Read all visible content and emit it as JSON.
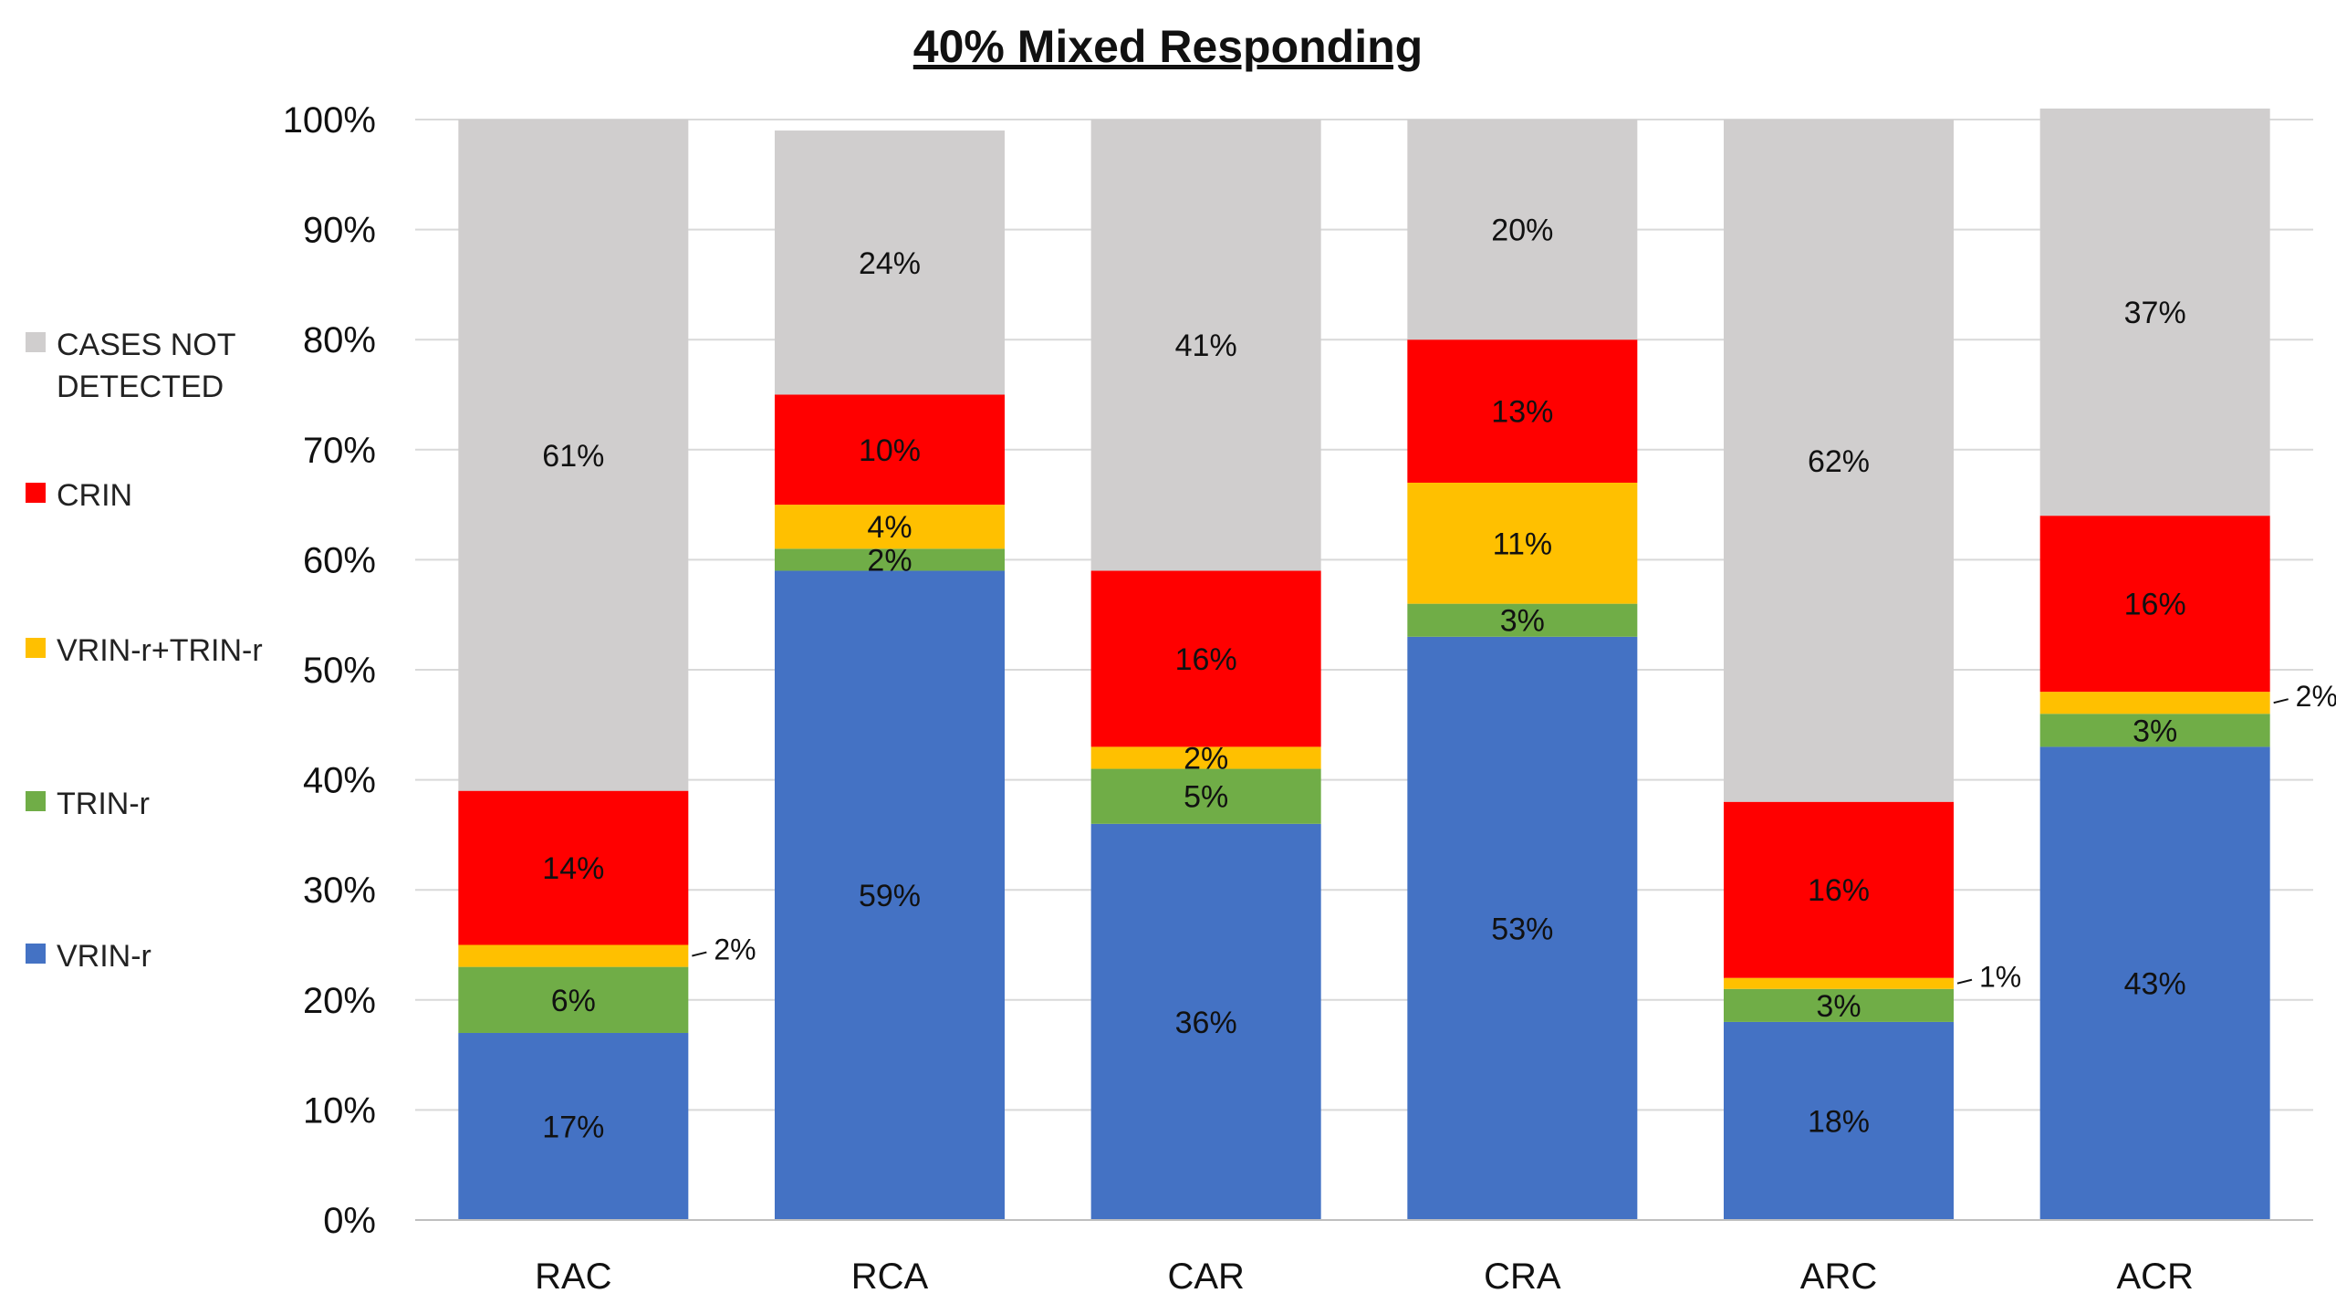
{
  "chart_data": {
    "type": "bar",
    "stacked": true,
    "title": "40% Mixed Responding",
    "xlabel": "",
    "ylabel": "",
    "ylim": [
      0,
      100
    ],
    "y_ticks": [
      "0%",
      "10%",
      "20%",
      "30%",
      "40%",
      "50%",
      "60%",
      "70%",
      "80%",
      "90%",
      "100%"
    ],
    "grid": true,
    "legend_position": "left",
    "categories": [
      "RAC",
      "RCA",
      "CAR",
      "CRA",
      "ARC",
      "ACR"
    ],
    "series": [
      {
        "name": "VRIN-r",
        "color": "#4472C4",
        "values": [
          17,
          59,
          36,
          53,
          18,
          43
        ],
        "labels": [
          "17%",
          "59%",
          "36%",
          "53%",
          "18%",
          "43%"
        ]
      },
      {
        "name": "TRIN-r",
        "color": "#70AD47",
        "values": [
          6,
          2,
          5,
          3,
          3,
          3
        ],
        "labels": [
          "6%",
          "2%",
          "5%",
          "3%",
          "3%",
          "3%"
        ]
      },
      {
        "name": "VRIN-r+TRIN-r",
        "color": "#FFC000",
        "values": [
          2,
          4,
          2,
          11,
          1,
          2
        ],
        "labels": [
          "2%",
          "4%",
          "2%",
          "11%",
          "1%",
          "2%"
        ]
      },
      {
        "name": "CRIN",
        "color": "#FF0000",
        "values": [
          14,
          10,
          16,
          13,
          16,
          16
        ],
        "labels": [
          "14%",
          "10%",
          "16%",
          "13%",
          "16%",
          "16%"
        ]
      },
      {
        "name": "CASES NOT DETECTED",
        "color": "#D0CECE",
        "values": [
          61,
          24,
          41,
          20,
          62,
          37
        ],
        "labels": [
          "61%",
          "24%",
          "41%",
          "20%",
          "62%",
          "37%"
        ]
      }
    ],
    "legend_order": [
      "CASES NOT DETECTED",
      "CRIN",
      "VRIN-r+TRIN-r",
      "TRIN-r",
      "VRIN-r"
    ],
    "callouts": [
      {
        "category": "RAC",
        "series": "VRIN-r+TRIN-r",
        "label": "2%"
      },
      {
        "category": "ARC",
        "series": "VRIN-r+TRIN-r",
        "label": "1%"
      },
      {
        "category": "ACR",
        "series": "VRIN-r+TRIN-r",
        "label": "2%"
      }
    ]
  }
}
